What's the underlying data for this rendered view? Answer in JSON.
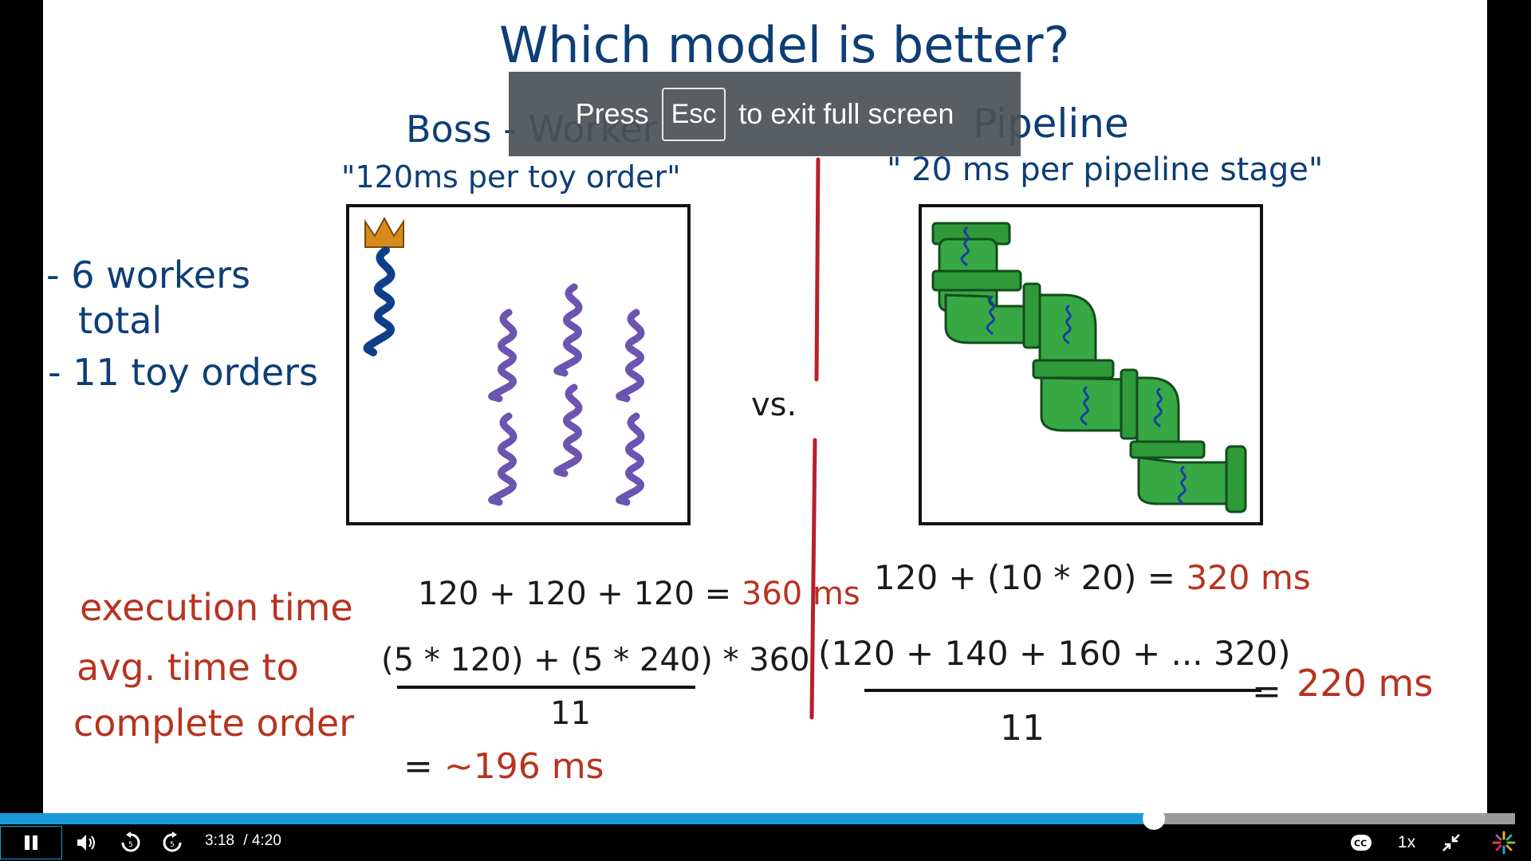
{
  "board": {
    "title": "Which model is better?",
    "boss_worker": {
      "heading": "Boss - Worker",
      "quote": "\"120ms per toy order\""
    },
    "pipeline": {
      "heading": "Pipeline",
      "quote": "\" 20 ms per pipeline stage\""
    },
    "notes": [
      "- 6 workers",
      "total",
      "- 11 toy orders"
    ],
    "vs": "vs.",
    "labels": {
      "execution_time": "execution time",
      "avg_line1": "avg. time to",
      "avg_line2": "complete order"
    },
    "left_calc": {
      "exec": "120 + 120 + 120 = ",
      "exec_result": "360 ms",
      "avg_numerator": "(5 * 120) + (5 * 240) * 360",
      "avg_denominator": "11",
      "avg_eq": "= ",
      "avg_result": "~196 ms"
    },
    "right_calc": {
      "exec": "120 + (10 * 20) = ",
      "exec_result": "320 ms",
      "avg_numerator": "(120 + 140 + 160 + ... 320)",
      "avg_denominator": "11",
      "avg_eq": "=",
      "avg_result": "220 ms"
    }
  },
  "fullscreen_toast": {
    "press": "Press",
    "key": "Esc",
    "message": "to exit full screen"
  },
  "player": {
    "current_time": "3:18",
    "duration": "/ 4:20",
    "progress_fraction": 0.7615,
    "speed": "1x",
    "colors": {
      "progress": "#1a9bd7",
      "track": "#9a9a9a"
    },
    "icons": [
      "pause-icon",
      "volume-icon",
      "rewind-icon",
      "forward-icon",
      "captions-icon",
      "exit-fullscreen-icon",
      "brand-logo-icon"
    ]
  }
}
